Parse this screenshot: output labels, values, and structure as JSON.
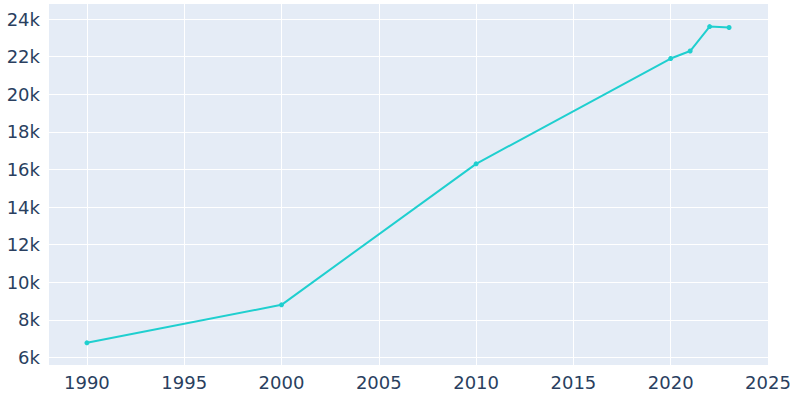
{
  "chart_data": {
    "type": "line",
    "x": [
      1990,
      2000,
      2010,
      2020,
      2021,
      2022,
      2023
    ],
    "values": [
      6780,
      8800,
      16300,
      21900,
      22300,
      23600,
      23550
    ],
    "color": "#1fcfcf",
    "marker": "circle",
    "xlim": [
      1988,
      2025
    ],
    "xticks": [
      1990,
      1995,
      2000,
      2005,
      2010,
      2015,
      2020,
      2025
    ],
    "ylim": [
      5600,
      24800
    ],
    "yticks": [
      {
        "value": 6000,
        "label": "6k"
      },
      {
        "value": 8000,
        "label": "8k"
      },
      {
        "value": 10000,
        "label": "10k"
      },
      {
        "value": 12000,
        "label": "12k"
      },
      {
        "value": 14000,
        "label": "14k"
      },
      {
        "value": 16000,
        "label": "16k"
      },
      {
        "value": 18000,
        "label": "18k"
      },
      {
        "value": 20000,
        "label": "20k"
      },
      {
        "value": 22000,
        "label": "22k"
      },
      {
        "value": 24000,
        "label": "24k"
      }
    ],
    "grid": true
  }
}
